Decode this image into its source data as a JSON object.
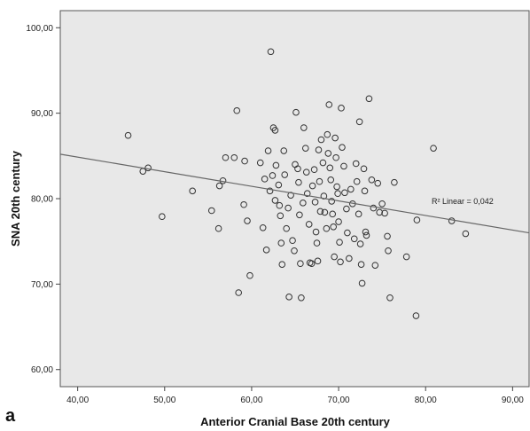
{
  "panel_label": "a",
  "chart_data": {
    "type": "scatter",
    "title": "",
    "xlabel": "Anterior Cranial Base  20th century",
    "ylabel": "SNA 20th century",
    "xlim": [
      38,
      92
    ],
    "ylim": [
      58,
      102
    ],
    "xticks": [
      "40,00",
      "50,00",
      "60,00",
      "70,00",
      "80,00",
      "90,00"
    ],
    "xtick_values": [
      40,
      50,
      60,
      70,
      80,
      90
    ],
    "yticks": [
      "60,00",
      "70,00",
      "80,00",
      "90,00",
      "100,00"
    ],
    "ytick_values": [
      60,
      70,
      80,
      90,
      100
    ],
    "grid": false,
    "background": "#e8e8e8",
    "fit_line": {
      "label": "R² Linear = 0,042",
      "x": [
        38,
        92
      ],
      "y": [
        85.2,
        76.0
      ]
    },
    "points": [
      [
        45.8,
        87.4
      ],
      [
        47.5,
        83.2
      ],
      [
        48.1,
        83.6
      ],
      [
        49.7,
        77.9
      ],
      [
        53.2,
        80.9
      ],
      [
        55.4,
        78.6
      ],
      [
        56.3,
        81.5
      ],
      [
        56.7,
        82.1
      ],
      [
        57.0,
        84.8
      ],
      [
        56.2,
        76.5
      ],
      [
        58.0,
        84.8
      ],
      [
        58.3,
        90.3
      ],
      [
        58.5,
        69.0
      ],
      [
        59.1,
        79.3
      ],
      [
        59.2,
        84.4
      ],
      [
        59.5,
        77.4
      ],
      [
        59.8,
        71.0
      ],
      [
        61.0,
        84.2
      ],
      [
        61.3,
        76.6
      ],
      [
        61.5,
        82.3
      ],
      [
        61.7,
        74.0
      ],
      [
        61.9,
        85.6
      ],
      [
        62.1,
        80.9
      ],
      [
        62.2,
        97.2
      ],
      [
        62.4,
        82.7
      ],
      [
        62.5,
        88.3
      ],
      [
        62.7,
        88.0
      ],
      [
        62.7,
        79.8
      ],
      [
        62.8,
        83.9
      ],
      [
        63.1,
        81.6
      ],
      [
        63.2,
        79.2
      ],
      [
        63.3,
        78.0
      ],
      [
        63.4,
        74.8
      ],
      [
        63.5,
        72.3
      ],
      [
        63.7,
        85.6
      ],
      [
        63.8,
        82.8
      ],
      [
        64.0,
        76.5
      ],
      [
        64.2,
        78.9
      ],
      [
        64.3,
        68.5
      ],
      [
        64.5,
        80.4
      ],
      [
        64.7,
        75.1
      ],
      [
        64.9,
        73.9
      ],
      [
        65.0,
        84.0
      ],
      [
        65.1,
        90.1
      ],
      [
        65.3,
        83.5
      ],
      [
        65.4,
        81.9
      ],
      [
        65.5,
        78.1
      ],
      [
        65.6,
        72.4
      ],
      [
        65.7,
        68.4
      ],
      [
        65.9,
        79.5
      ],
      [
        66.0,
        88.3
      ],
      [
        66.2,
        85.9
      ],
      [
        66.3,
        83.1
      ],
      [
        66.4,
        80.6
      ],
      [
        66.6,
        77.0
      ],
      [
        66.7,
        72.5
      ],
      [
        66.9,
        72.4
      ],
      [
        67.0,
        81.5
      ],
      [
        67.2,
        83.4
      ],
      [
        67.3,
        79.6
      ],
      [
        67.4,
        76.1
      ],
      [
        67.5,
        74.8
      ],
      [
        67.6,
        72.7
      ],
      [
        67.7,
        85.7
      ],
      [
        67.8,
        82.0
      ],
      [
        67.9,
        78.5
      ],
      [
        68.0,
        86.9
      ],
      [
        68.2,
        84.2
      ],
      [
        68.3,
        80.3
      ],
      [
        68.4,
        78.4
      ],
      [
        68.6,
        76.5
      ],
      [
        68.7,
        87.5
      ],
      [
        68.8,
        85.3
      ],
      [
        68.9,
        91.0
      ],
      [
        69.0,
        83.6
      ],
      [
        69.1,
        82.2
      ],
      [
        69.2,
        79.7
      ],
      [
        69.3,
        78.2
      ],
      [
        69.4,
        76.7
      ],
      [
        69.5,
        73.2
      ],
      [
        69.6,
        87.1
      ],
      [
        69.7,
        84.8
      ],
      [
        69.8,
        81.4
      ],
      [
        69.9,
        80.6
      ],
      [
        70.0,
        77.3
      ],
      [
        70.1,
        74.9
      ],
      [
        70.2,
        72.6
      ],
      [
        70.3,
        90.6
      ],
      [
        70.4,
        86.0
      ],
      [
        70.6,
        83.8
      ],
      [
        70.7,
        80.7
      ],
      [
        70.9,
        78.8
      ],
      [
        71.0,
        76.0
      ],
      [
        71.2,
        73.0
      ],
      [
        71.4,
        81.1
      ],
      [
        71.6,
        79.4
      ],
      [
        71.8,
        75.3
      ],
      [
        72.0,
        84.1
      ],
      [
        72.1,
        82.0
      ],
      [
        72.3,
        78.2
      ],
      [
        72.4,
        89.0
      ],
      [
        72.5,
        74.7
      ],
      [
        72.6,
        72.3
      ],
      [
        72.7,
        70.1
      ],
      [
        72.9,
        83.5
      ],
      [
        73.0,
        80.9
      ],
      [
        73.1,
        76.1
      ],
      [
        73.2,
        75.7
      ],
      [
        73.5,
        91.7
      ],
      [
        73.8,
        82.2
      ],
      [
        74.0,
        78.9
      ],
      [
        74.2,
        72.2
      ],
      [
        74.5,
        81.8
      ],
      [
        74.7,
        78.4
      ],
      [
        75.0,
        79.4
      ],
      [
        75.3,
        78.3
      ],
      [
        75.6,
        75.6
      ],
      [
        75.7,
        73.9
      ],
      [
        75.9,
        68.4
      ],
      [
        76.4,
        81.9
      ],
      [
        77.8,
        73.2
      ],
      [
        78.9,
        66.3
      ],
      [
        79.0,
        77.5
      ],
      [
        80.9,
        85.9
      ],
      [
        83.0,
        77.4
      ],
      [
        84.6,
        75.9
      ]
    ]
  }
}
